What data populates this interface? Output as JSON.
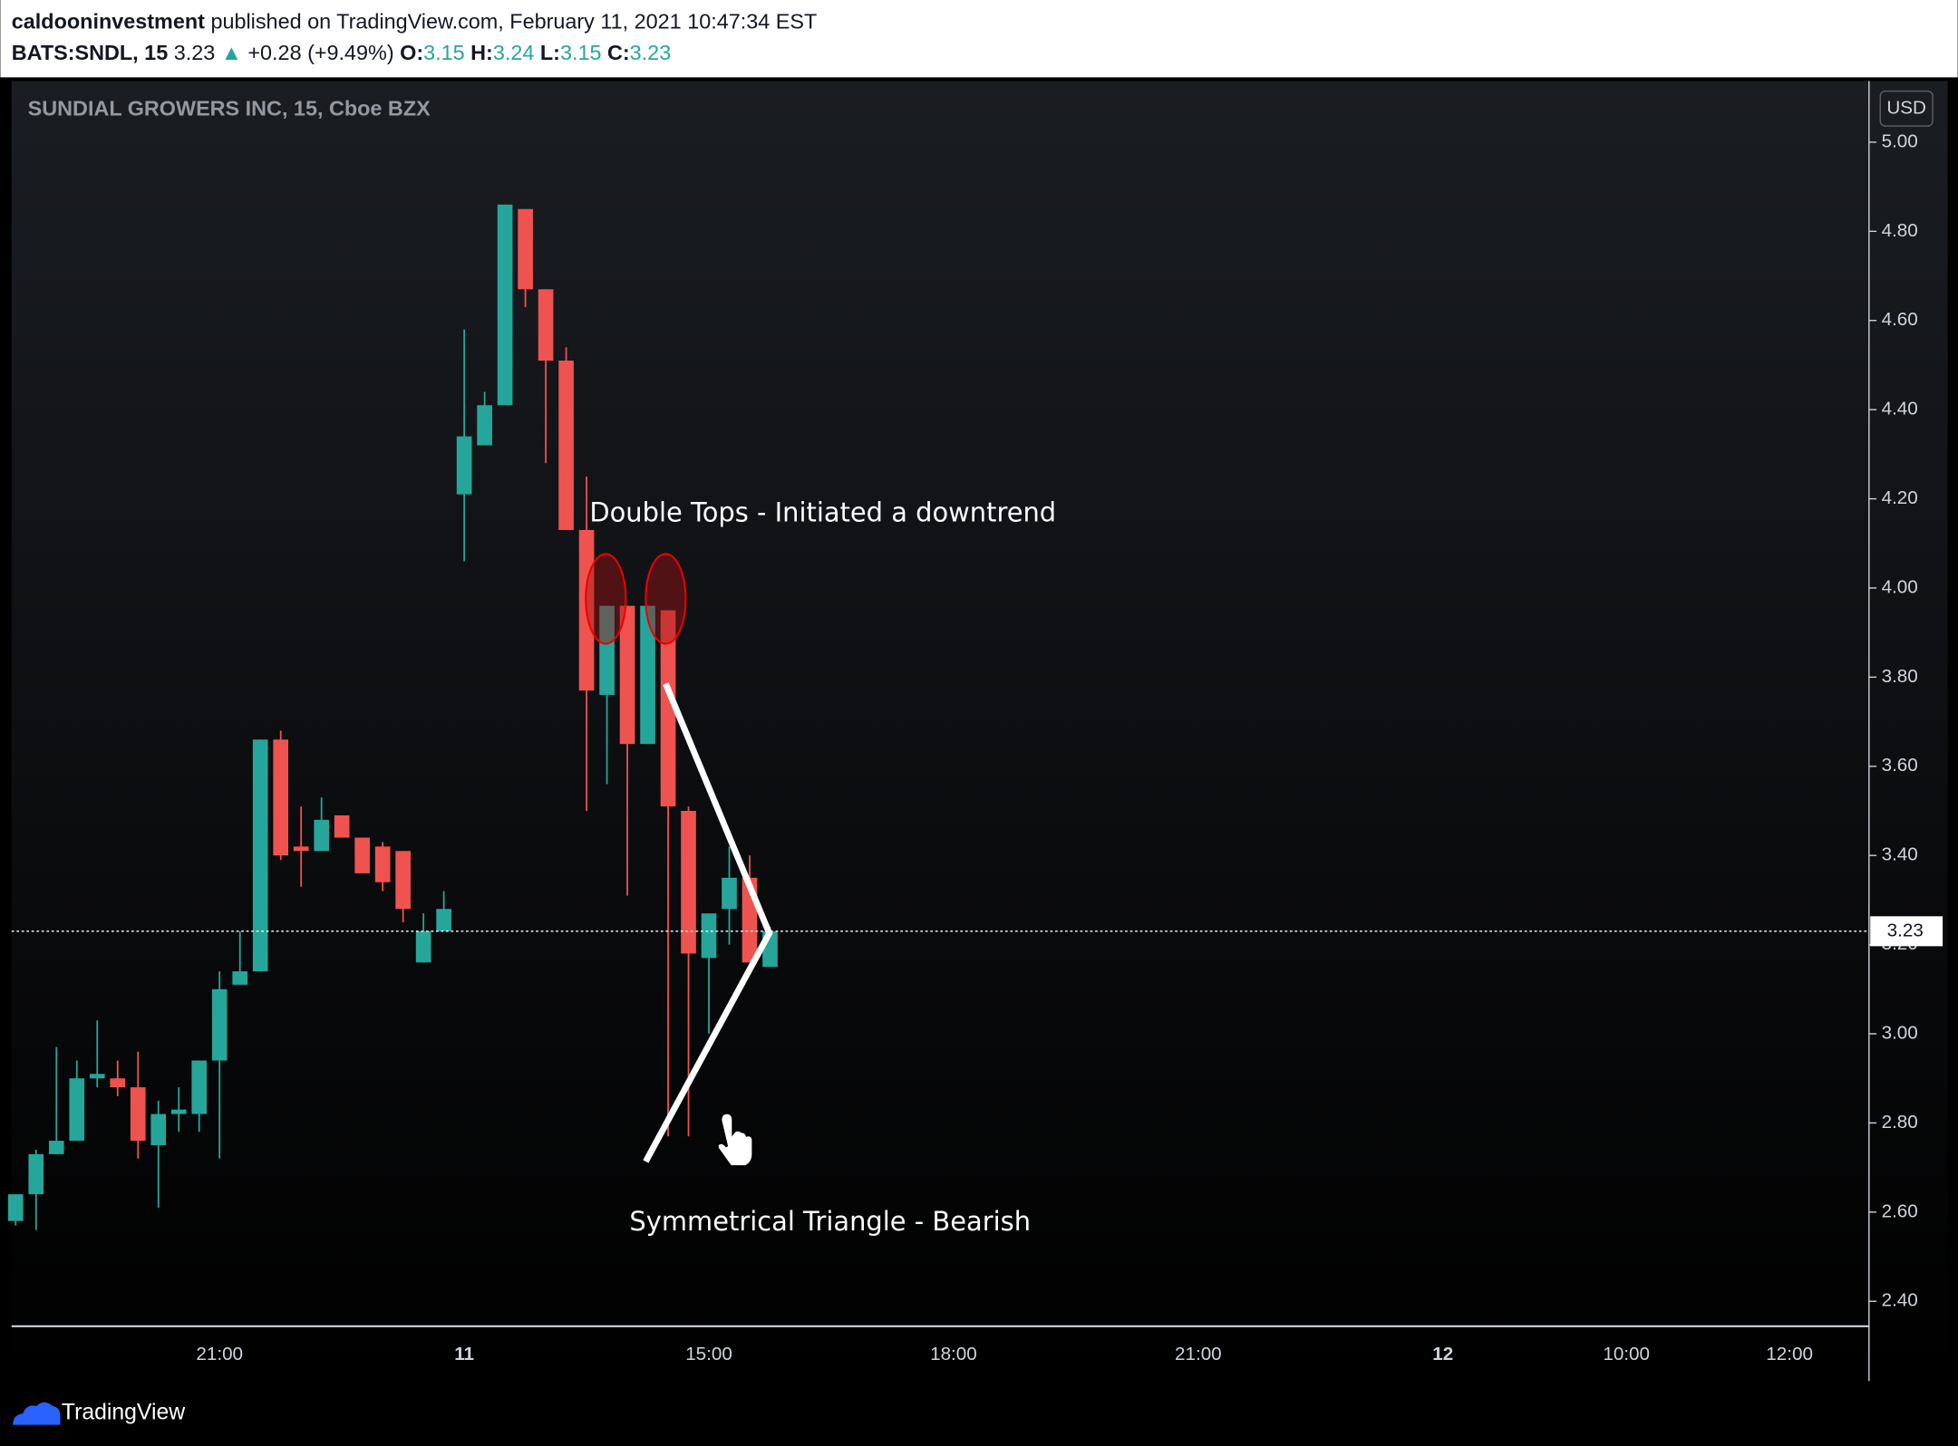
{
  "header": {
    "author": "caldooninvestment",
    "published": "published on TradingView.com, February 11, 2021 10:47:34 EST",
    "symbol": "BATS:SNDL, 15",
    "price": "3.23",
    "arrow": "▲",
    "change": "+0.28 (+9.49%)",
    "ohlc": [
      {
        "label": "O:",
        "value": "3.15"
      },
      {
        "label": "H:",
        "value": "3.24"
      },
      {
        "label": "L:",
        "value": "3.15"
      },
      {
        "label": "C:",
        "value": "3.23"
      }
    ]
  },
  "chart_data": {
    "type": "candlestick",
    "title": "SUNDIAL GROWERS INC, 15, Cboe BZX",
    "y_unit": "USD",
    "up_color": "#26a69a",
    "down_color": "#ef5350",
    "grid": false,
    "x": [
      0,
      1,
      2,
      3,
      4,
      5,
      6,
      7,
      8,
      9,
      10,
      11,
      12,
      13,
      14,
      15,
      16,
      17,
      18,
      19,
      20,
      21,
      22,
      23,
      24,
      25,
      26,
      27,
      28,
      29,
      30,
      31,
      32,
      33,
      34,
      35,
      36,
      37
    ],
    "open": [
      2.58,
      2.64,
      2.73,
      2.76,
      2.9,
      2.9,
      2.88,
      2.75,
      2.82,
      2.82,
      2.94,
      3.11,
      3.14,
      3.66,
      3.42,
      3.41,
      3.49,
      3.44,
      3.42,
      3.41,
      3.16,
      3.23,
      4.21,
      4.32,
      4.41,
      4.85,
      4.67,
      4.51,
      4.13,
      3.76,
      3.96,
      3.65,
      3.95,
      3.5,
      3.17,
      3.28,
      3.35,
      3.15
    ],
    "high": [
      2.64,
      2.74,
      2.97,
      2.94,
      3.03,
      2.94,
      2.96,
      2.85,
      2.88,
      2.94,
      3.14,
      3.23,
      3.66,
      3.68,
      3.51,
      3.53,
      3.49,
      3.44,
      3.43,
      3.41,
      3.27,
      3.32,
      4.58,
      4.44,
      4.86,
      4.85,
      4.67,
      4.54,
      4.25,
      3.96,
      3.96,
      3.96,
      3.95,
      3.51,
      3.27,
      3.42,
      3.4,
      3.24
    ],
    "low": [
      2.57,
      2.56,
      2.73,
      2.76,
      2.88,
      2.86,
      2.72,
      2.61,
      2.78,
      2.78,
      2.72,
      3.11,
      3.14,
      3.39,
      3.33,
      3.41,
      3.44,
      3.36,
      3.32,
      3.25,
      3.16,
      3.23,
      4.06,
      4.32,
      4.41,
      4.63,
      4.28,
      4.13,
      3.5,
      3.56,
      3.31,
      3.65,
      2.77,
      2.77,
      3.0,
      3.2,
      3.16,
      3.15
    ],
    "close": [
      2.64,
      2.73,
      2.76,
      2.9,
      2.91,
      2.88,
      2.76,
      2.82,
      2.83,
      2.94,
      3.1,
      3.14,
      3.66,
      3.4,
      3.41,
      3.48,
      3.44,
      3.36,
      3.34,
      3.28,
      3.23,
      3.28,
      4.34,
      4.41,
      4.86,
      4.67,
      4.51,
      4.13,
      3.77,
      3.96,
      3.65,
      3.96,
      3.51,
      3.18,
      3.27,
      3.35,
      3.16,
      3.23
    ],
    "last_price": 3.23,
    "xlim": [
      -0.2,
      90.9
    ],
    "ylim": [
      2.344,
      5.137
    ],
    "xticks": [
      {
        "value": 10,
        "label": "21:00"
      },
      {
        "value": 22,
        "label": "11"
      },
      {
        "value": 34,
        "label": "15:00"
      },
      {
        "value": 46,
        "label": "18:00"
      },
      {
        "value": 58,
        "label": "21:00"
      },
      {
        "value": 70,
        "label": "12"
      },
      {
        "value": 79,
        "label": "10:00"
      },
      {
        "value": 87,
        "label": "12:00"
      }
    ],
    "yticks": [
      {
        "value": 2.4,
        "label": "2.40"
      },
      {
        "value": 2.6,
        "label": "2.60"
      },
      {
        "value": 2.8,
        "label": "2.80"
      },
      {
        "value": 3.0,
        "label": "3.00"
      },
      {
        "value": 3.2,
        "label": "3.20"
      },
      {
        "value": 3.4,
        "label": "3.40"
      },
      {
        "value": 3.6,
        "label": "3.60"
      },
      {
        "value": 3.8,
        "label": "3.80"
      },
      {
        "value": 4.0,
        "label": "4.00"
      },
      {
        "value": 4.2,
        "label": "4.20"
      },
      {
        "value": 4.4,
        "label": "4.40"
      },
      {
        "value": 4.6,
        "label": "4.60"
      },
      {
        "value": 4.8,
        "label": "4.80"
      },
      {
        "value": 5.0,
        "label": "5.00"
      }
    ],
    "annotations": [
      "Double Tops - Initiated a downtrend",
      "Symmetrical Triangle - Bearish"
    ]
  },
  "footer": {
    "brand": "TradingView"
  }
}
